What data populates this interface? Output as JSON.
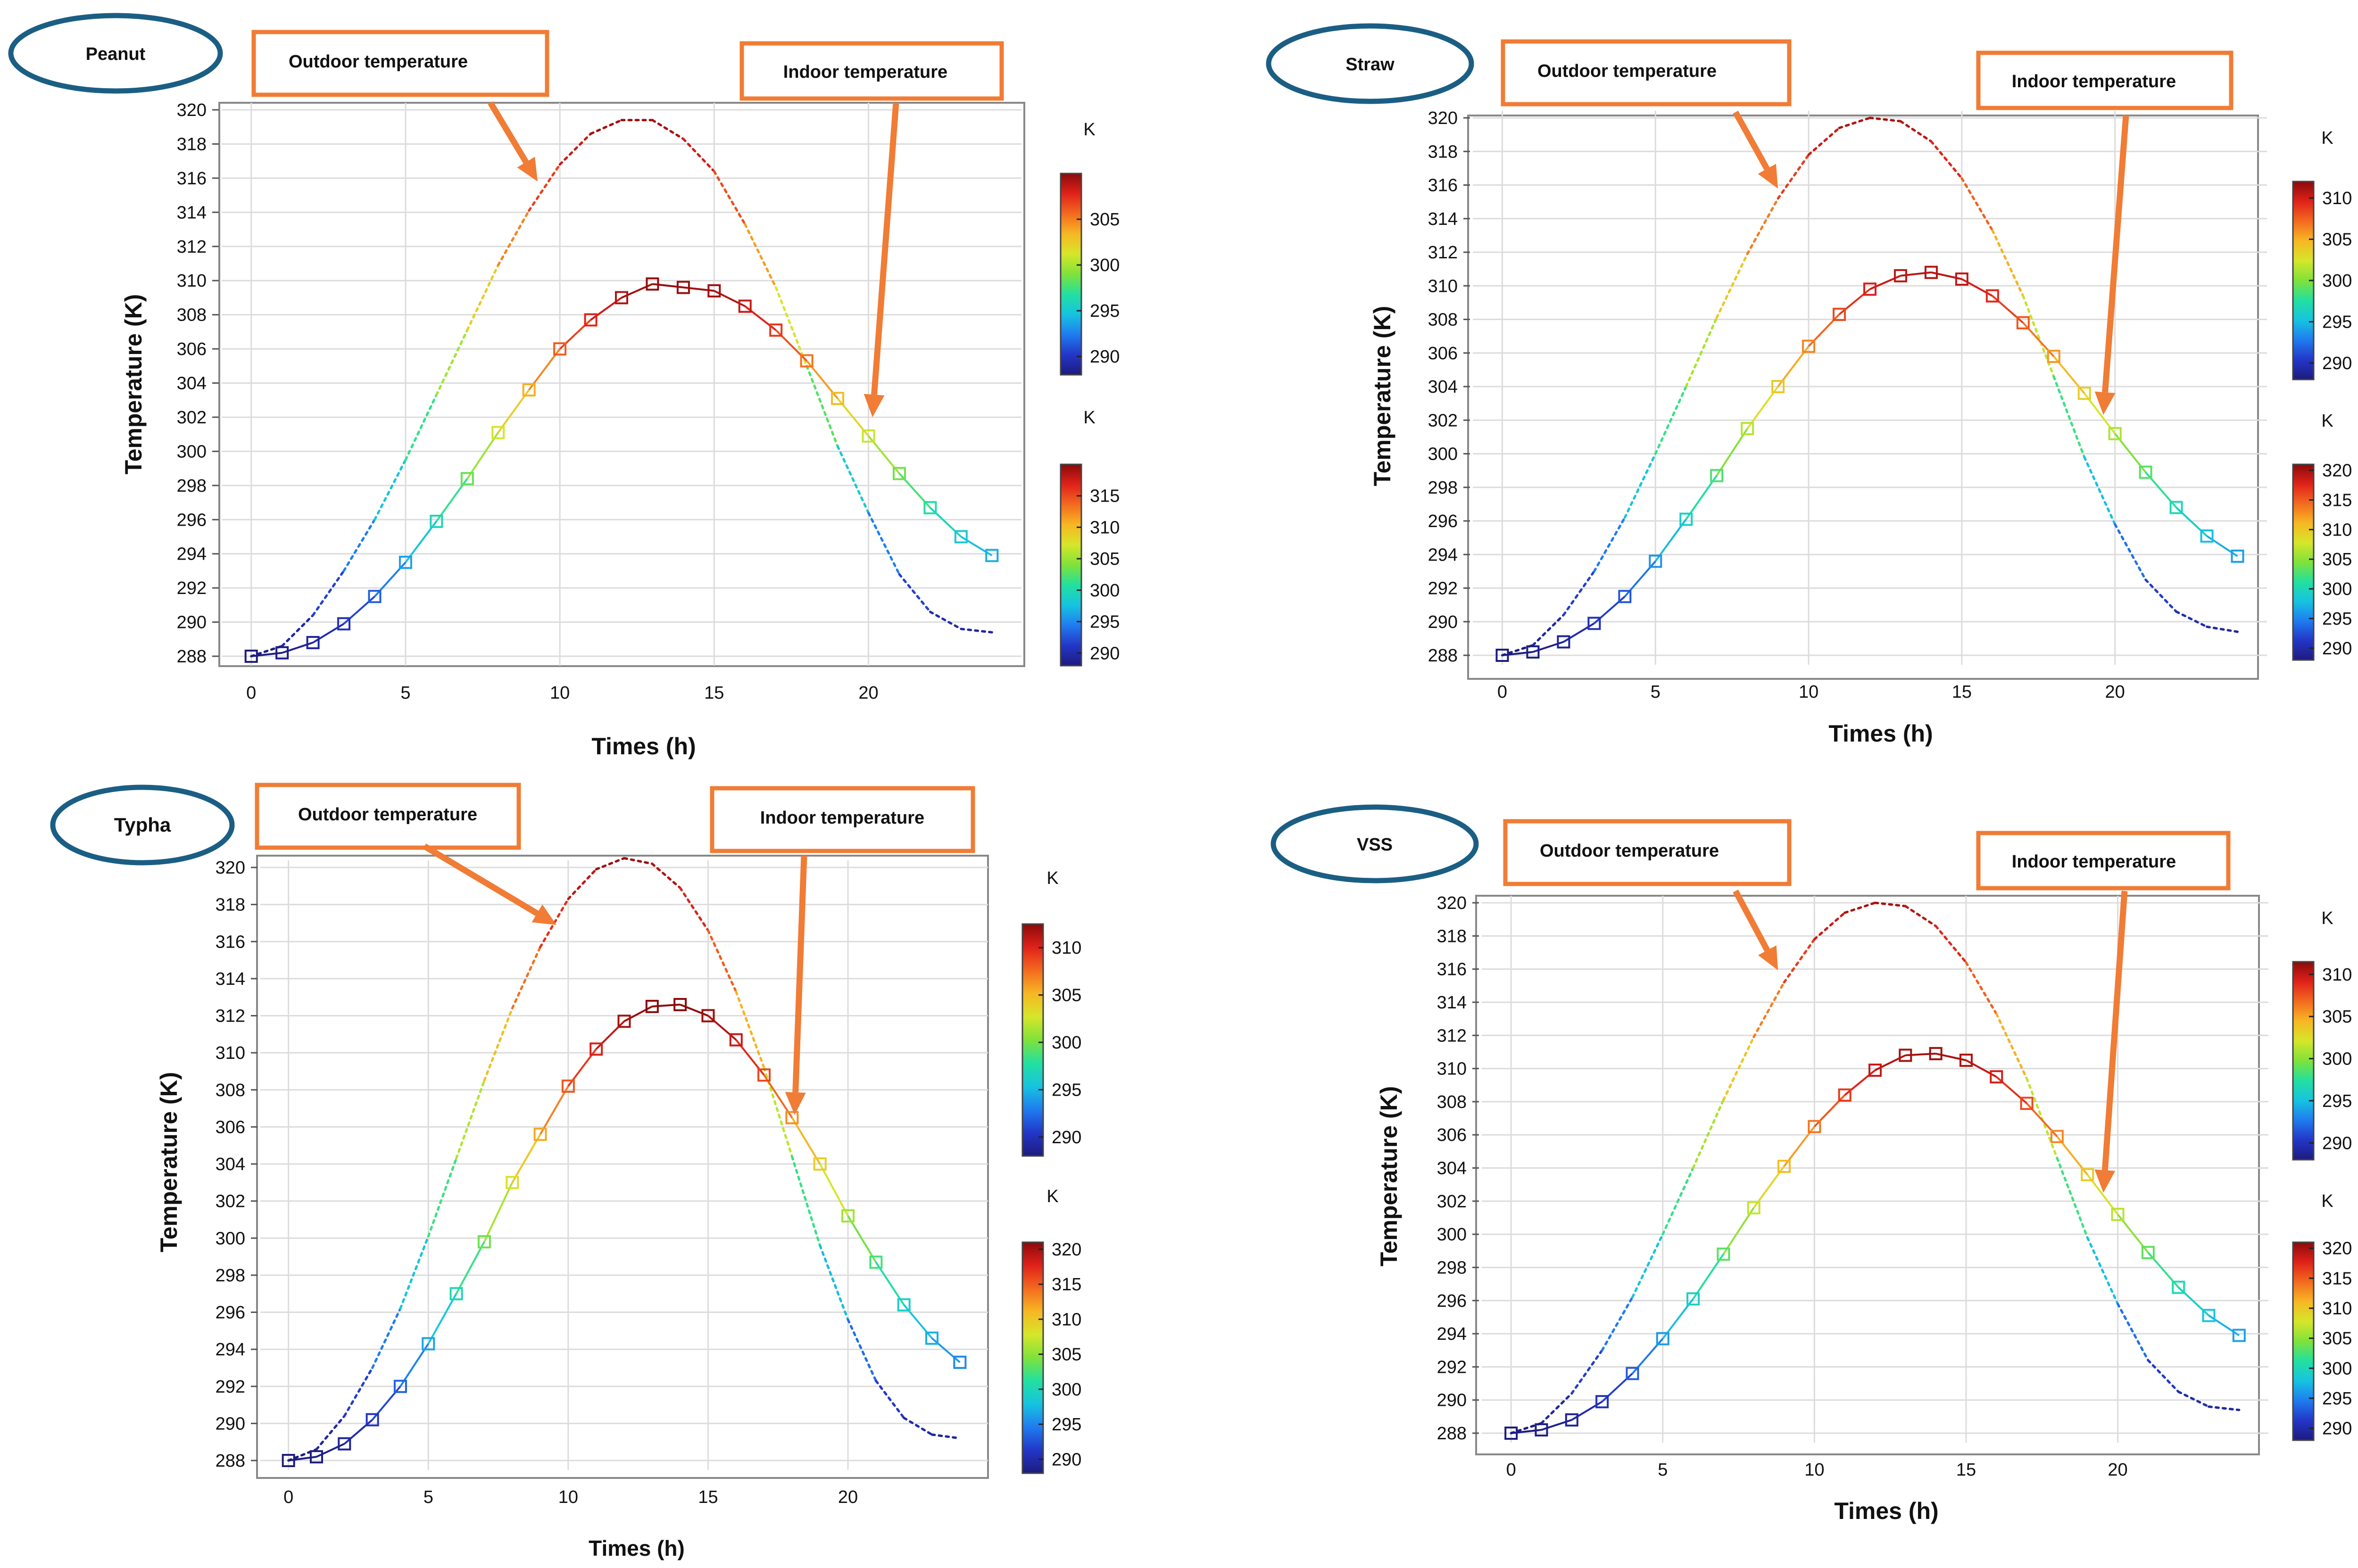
{
  "figure": {
    "outdoor_label": "Outdoor temperature",
    "indoor_label": "Indoor temperature",
    "colorbar_unit": "K"
  },
  "colors": {
    "panel_border": "#1b5e84",
    "callout": "#f07c35",
    "axis": "#555555",
    "grid": "#dcdcdc",
    "colormap": [
      "#1d1b7e",
      "#2336c8",
      "#1f7cf0",
      "#17c3e0",
      "#22e0a0",
      "#7fe23a",
      "#d6e62a",
      "#f7b723",
      "#f36a1f",
      "#e0211a",
      "#8a0a0a"
    ]
  },
  "chart_data": [
    {
      "type": "line",
      "title": "Peanut",
      "xlabel": "Times (h)",
      "ylabel": "Temperature (K)",
      "xlim": [
        -0.5,
        24.5
      ],
      "ylim": [
        287.2,
        321
      ],
      "xticks": [
        0,
        5,
        10,
        15,
        20
      ],
      "yticks": [
        288,
        290,
        292,
        294,
        296,
        298,
        300,
        302,
        304,
        306,
        308,
        310,
        312,
        314,
        316,
        318,
        320
      ],
      "grid": true,
      "series": [
        {
          "name": "Indoor temperature",
          "style": "solid-markers",
          "x": [
            0,
            1,
            2,
            3,
            4,
            5,
            6,
            7,
            8,
            9,
            10,
            11,
            12,
            13,
            14,
            15,
            16,
            17,
            18,
            19,
            20,
            21,
            22,
            23,
            24
          ],
          "values": [
            288.0,
            288.2,
            288.8,
            289.9,
            291.5,
            293.5,
            295.9,
            298.4,
            301.1,
            303.6,
            306.0,
            307.7,
            309.0,
            309.8,
            309.6,
            309.4,
            308.5,
            307.1,
            305.3,
            303.1,
            300.9,
            298.7,
            296.7,
            295.0,
            293.9
          ]
        },
        {
          "name": "Outdoor temperature",
          "style": "dotted",
          "x": [
            0,
            1,
            2,
            3,
            4,
            5,
            6,
            7,
            8,
            9,
            10,
            11,
            12,
            13,
            14,
            15,
            16,
            17,
            18,
            19,
            20,
            21,
            22,
            23,
            24
          ],
          "values": [
            288.0,
            288.6,
            290.4,
            293.0,
            296.0,
            299.5,
            303.3,
            307.1,
            310.9,
            314.1,
            316.8,
            318.6,
            319.4,
            319.4,
            318.3,
            316.4,
            313.3,
            309.6,
            305.0,
            300.3,
            296.4,
            292.8,
            290.6,
            289.6,
            289.4
          ]
        }
      ],
      "colorbars": [
        {
          "unit": "K",
          "ticks": [
            290,
            295,
            300,
            305
          ],
          "range": [
            288,
            310
          ]
        },
        {
          "unit": "K",
          "ticks": [
            290,
            295,
            300,
            305,
            310,
            315
          ],
          "range": [
            288,
            320
          ]
        }
      ]
    },
    {
      "type": "line",
      "title": "Straw",
      "xlabel": "Times (h)",
      "ylabel": "Temperature (K)",
      "xlim": [
        -0.5,
        24.5
      ],
      "ylim": [
        287.2,
        321
      ],
      "xticks": [
        0,
        5,
        10,
        15,
        20
      ],
      "yticks": [
        288,
        290,
        292,
        294,
        296,
        298,
        300,
        302,
        304,
        306,
        308,
        310,
        312,
        314,
        316,
        318,
        320
      ],
      "grid": true,
      "series": [
        {
          "name": "Indoor temperature",
          "style": "solid-markers",
          "x": [
            0,
            1,
            2,
            3,
            4,
            5,
            6,
            7,
            8,
            9,
            10,
            11,
            12,
            13,
            14,
            15,
            16,
            17,
            18,
            19,
            20,
            21,
            22,
            23,
            24
          ],
          "values": [
            288.0,
            288.2,
            288.8,
            289.9,
            291.5,
            293.6,
            296.1,
            298.7,
            301.5,
            304.0,
            306.4,
            308.3,
            309.8,
            310.6,
            310.8,
            310.4,
            309.4,
            307.8,
            305.8,
            303.6,
            301.2,
            298.9,
            296.8,
            295.1,
            293.9
          ]
        },
        {
          "name": "Outdoor temperature",
          "style": "dotted",
          "x": [
            0,
            1,
            2,
            3,
            4,
            5,
            6,
            7,
            8,
            9,
            10,
            11,
            12,
            13,
            14,
            15,
            16,
            17,
            18,
            19,
            20,
            21,
            22,
            23,
            24
          ],
          "values": [
            288.0,
            288.6,
            290.4,
            293.0,
            296.2,
            300.0,
            304.0,
            308.1,
            311.9,
            315.2,
            317.8,
            319.4,
            320.0,
            319.8,
            318.6,
            316.4,
            313.3,
            309.4,
            304.6,
            299.8,
            295.8,
            292.5,
            290.6,
            289.7,
            289.4
          ]
        }
      ],
      "colorbars": [
        {
          "unit": "K",
          "ticks": [
            290,
            295,
            300,
            305,
            310
          ],
          "range": [
            288,
            312
          ]
        },
        {
          "unit": "K",
          "ticks": [
            290,
            295,
            300,
            305,
            310,
            315,
            320
          ],
          "range": [
            288,
            321
          ]
        }
      ]
    },
    {
      "type": "line",
      "title": "Typha",
      "xlabel": "Times (h)",
      "ylabel": "Temperature (K)",
      "xlim": [
        -0.5,
        24.5
      ],
      "ylim": [
        287.2,
        321.5
      ],
      "xticks": [
        0,
        5,
        10,
        15,
        20
      ],
      "yticks": [
        288,
        290,
        292,
        294,
        296,
        298,
        300,
        302,
        304,
        306,
        308,
        310,
        312,
        314,
        316,
        318,
        320
      ],
      "grid": true,
      "series": [
        {
          "name": "Indoor temperature",
          "style": "solid-markers",
          "x": [
            0,
            1,
            2,
            3,
            4,
            5,
            6,
            7,
            8,
            9,
            10,
            11,
            12,
            13,
            14,
            15,
            16,
            17,
            18,
            19,
            20,
            21,
            22,
            23,
            24
          ],
          "values": [
            288.0,
            288.2,
            288.9,
            290.2,
            292.0,
            294.3,
            297.0,
            299.8,
            303.0,
            305.6,
            308.2,
            310.2,
            311.7,
            312.5,
            312.6,
            312.0,
            310.7,
            308.8,
            306.5,
            304.0,
            301.2,
            298.7,
            296.4,
            294.6,
            293.3
          ]
        },
        {
          "name": "Outdoor temperature",
          "style": "dotted",
          "x": [
            0,
            1,
            2,
            3,
            4,
            5,
            6,
            7,
            8,
            9,
            10,
            11,
            12,
            13,
            14,
            15,
            16,
            17,
            18,
            19,
            20,
            21,
            22,
            23,
            24
          ],
          "values": [
            288.0,
            288.6,
            290.4,
            293.0,
            296.2,
            300.1,
            304.3,
            308.5,
            312.4,
            315.7,
            318.3,
            319.9,
            320.5,
            320.2,
            318.9,
            316.6,
            313.3,
            309.2,
            304.4,
            299.6,
            295.6,
            292.3,
            290.3,
            289.4,
            289.2
          ]
        }
      ],
      "colorbars": [
        {
          "unit": "K",
          "ticks": [
            290,
            295,
            300,
            305,
            310
          ],
          "range": [
            288,
            312.5
          ]
        },
        {
          "unit": "K",
          "ticks": [
            290,
            295,
            300,
            305,
            310,
            315,
            320
          ],
          "range": [
            288,
            321
          ]
        }
      ]
    },
    {
      "type": "line",
      "title": "VSS",
      "xlabel": "Times (h)",
      "ylabel": "Temperature (K)",
      "xlim": [
        -0.5,
        24.5
      ],
      "ylim": [
        287.4,
        321
      ],
      "xticks": [
        0,
        5,
        10,
        15,
        20
      ],
      "yticks": [
        288,
        290,
        292,
        294,
        296,
        298,
        300,
        302,
        304,
        306,
        308,
        310,
        312,
        314,
        316,
        318,
        320
      ],
      "grid": true,
      "series": [
        {
          "name": "Indoor temperature",
          "style": "solid-markers",
          "x": [
            0,
            1,
            2,
            3,
            4,
            5,
            6,
            7,
            8,
            9,
            10,
            11,
            12,
            13,
            14,
            15,
            16,
            17,
            18,
            19,
            20,
            21,
            22,
            23,
            24
          ],
          "values": [
            288.0,
            288.2,
            288.8,
            289.9,
            291.6,
            293.7,
            296.1,
            298.8,
            301.6,
            304.1,
            306.5,
            308.4,
            309.9,
            310.8,
            310.9,
            310.5,
            309.5,
            307.9,
            305.9,
            303.6,
            301.2,
            298.9,
            296.8,
            295.1,
            293.9
          ]
        },
        {
          "name": "Outdoor temperature",
          "style": "dotted",
          "x": [
            0,
            1,
            2,
            3,
            4,
            5,
            6,
            7,
            8,
            9,
            10,
            11,
            12,
            13,
            14,
            15,
            16,
            17,
            18,
            19,
            20,
            21,
            22,
            23,
            24
          ],
          "values": [
            288.0,
            288.6,
            290.4,
            293.0,
            296.2,
            300.0,
            304.0,
            308.1,
            311.9,
            315.2,
            317.8,
            319.4,
            320.0,
            319.8,
            318.6,
            316.4,
            313.3,
            309.4,
            304.6,
            299.8,
            295.8,
            292.4,
            290.5,
            289.6,
            289.4
          ]
        }
      ],
      "colorbars": [
        {
          "unit": "K",
          "ticks": [
            290,
            295,
            300,
            305,
            310
          ],
          "range": [
            288,
            311.5
          ]
        },
        {
          "unit": "K",
          "ticks": [
            290,
            295,
            300,
            305,
            310,
            315,
            320
          ],
          "range": [
            288,
            321
          ]
        }
      ]
    }
  ]
}
